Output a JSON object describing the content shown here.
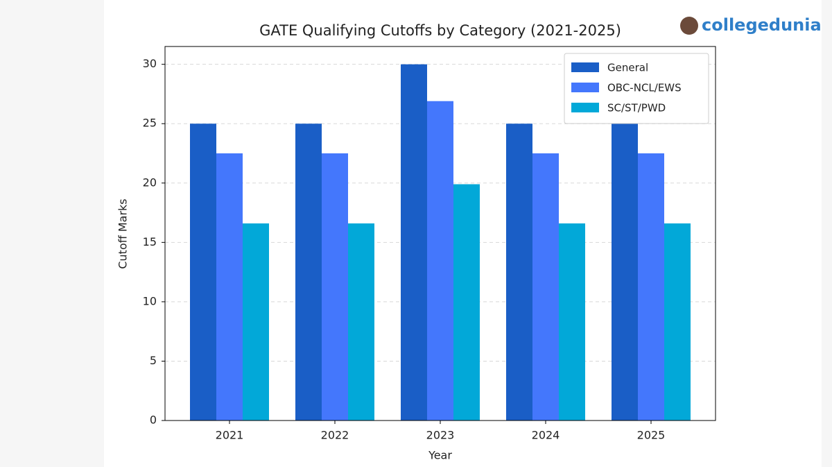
{
  "chart_data": {
    "type": "bar",
    "title": "GATE Qualifying Cutoffs by Category (2021-2025)",
    "xlabel": "Year",
    "ylabel": "Cutoff Marks",
    "categories": [
      "2021",
      "2022",
      "2023",
      "2024",
      "2025"
    ],
    "series": [
      {
        "name": "General",
        "color": "#1a5ec6",
        "values": [
          25,
          25,
          30,
          25,
          25
        ]
      },
      {
        "name": "OBC-NCL/EWS",
        "color": "#4477fc",
        "values": [
          22.5,
          22.5,
          26.9,
          22.5,
          22.5
        ]
      },
      {
        "name": "SC/ST/PWD",
        "color": "#02a8d8",
        "values": [
          16.6,
          16.6,
          19.9,
          16.6,
          16.6
        ]
      }
    ],
    "ylim": [
      0,
      31.5
    ],
    "yticks": [
      0,
      5,
      10,
      15,
      20,
      25,
      30
    ],
    "grid": true,
    "legend": "upper right"
  },
  "watermark": "collegedunia"
}
